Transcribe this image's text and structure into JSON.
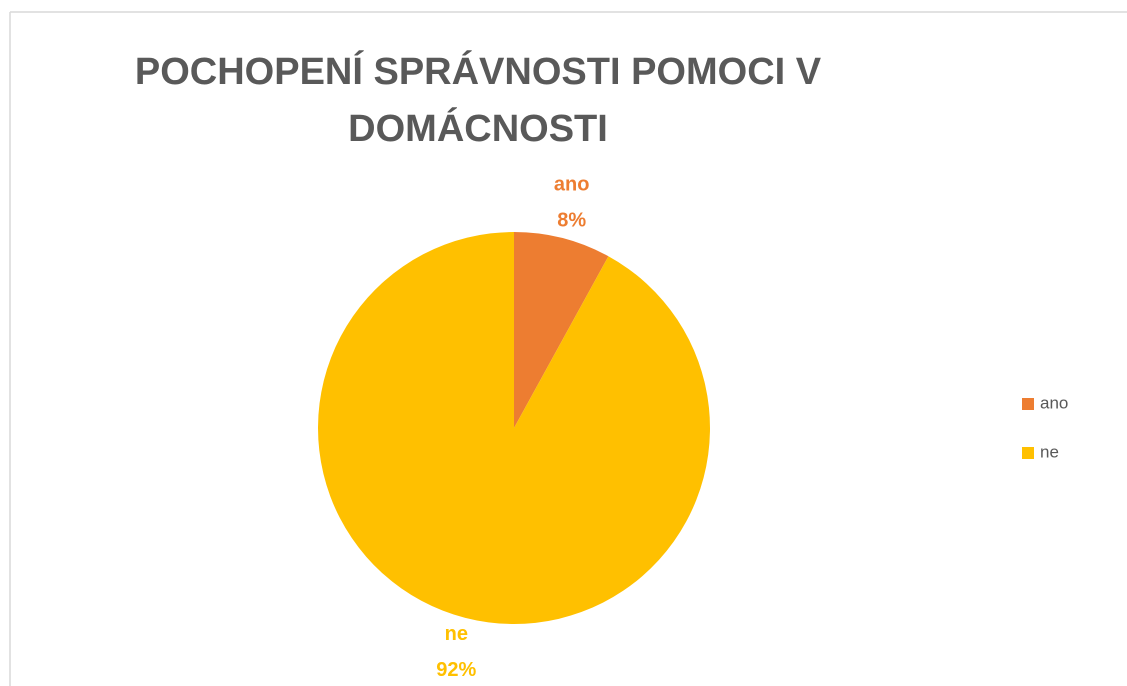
{
  "chart_data": {
    "type": "pie",
    "title": "POCHOPENÍ SPRÁVNOSTI POMOCI V DOMÁCNOSTI",
    "categories": [
      "ano",
      "ne"
    ],
    "values": [
      8,
      92
    ],
    "value_labels": [
      "8%",
      "92%"
    ],
    "colors": [
      "#ed7d31",
      "#ffc000"
    ],
    "legend": "right"
  }
}
